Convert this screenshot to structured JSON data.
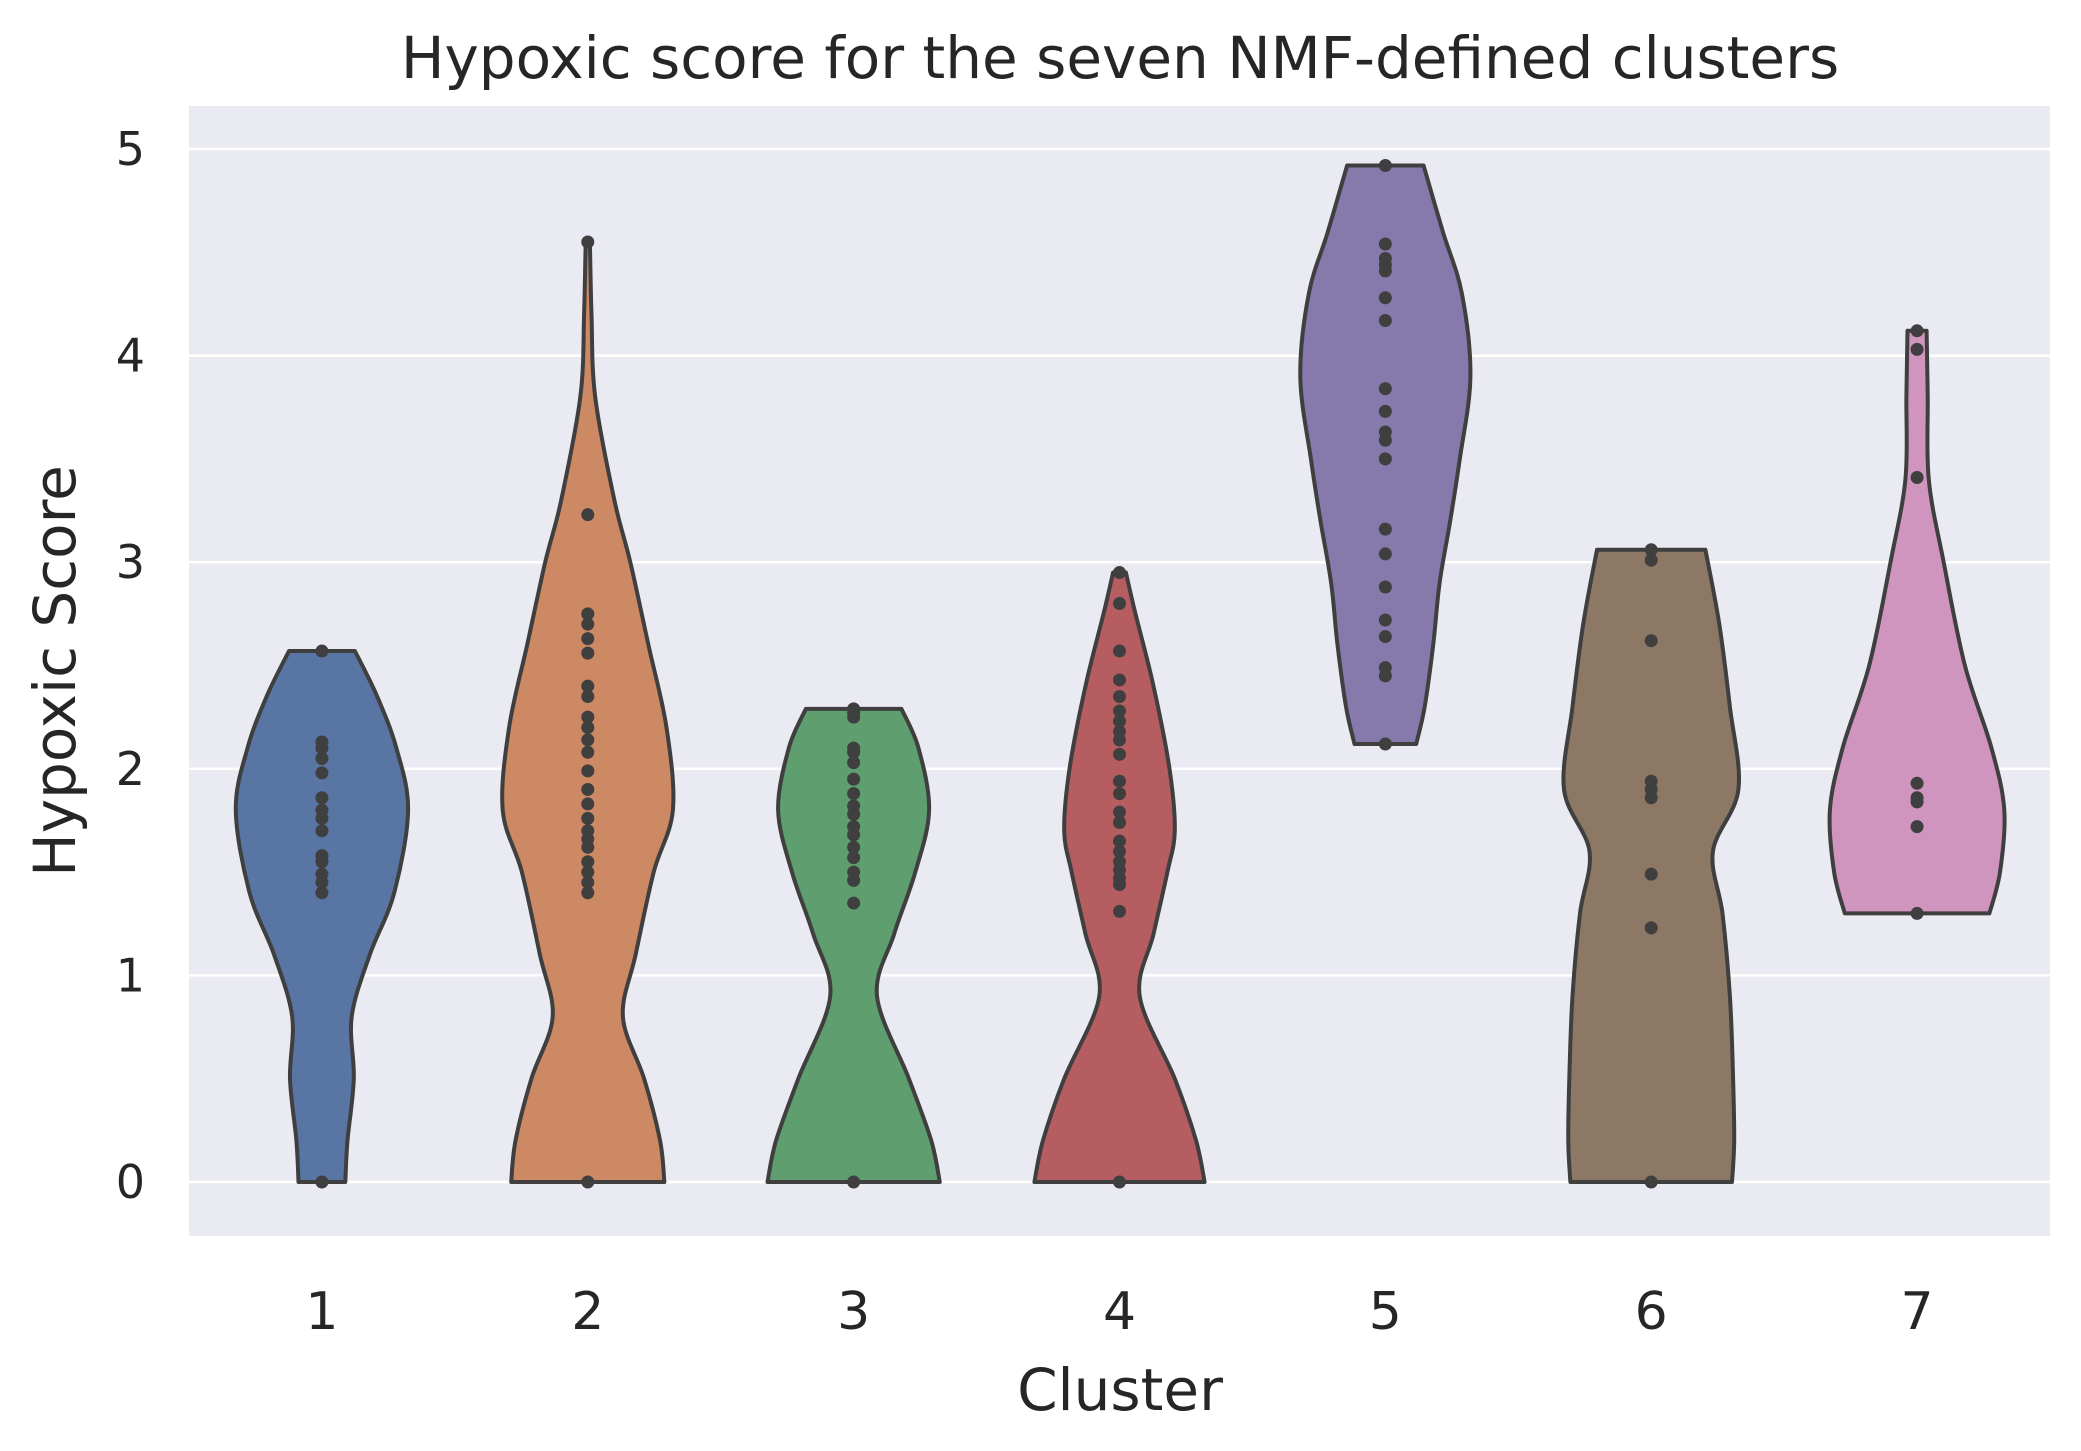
{
  "chart_data": {
    "type": "violin",
    "title": "Hypoxic score for the seven NMF-defined clusters",
    "xlabel": "Cluster",
    "ylabel": "Hypoxic Score",
    "ylim": [
      -0.28,
      5.2
    ],
    "yticks": [
      0,
      1,
      2,
      3,
      4,
      5
    ],
    "grid": true,
    "categories": [
      "1",
      "2",
      "3",
      "4",
      "5",
      "6",
      "7"
    ],
    "colors": [
      "#5875a4",
      "#cc8963",
      "#5f9e6e",
      "#b55d60",
      "#857aab",
      "#8d7866",
      "#d095bf"
    ],
    "background": "#eaeaf2",
    "edge_color": "#3f3f3f",
    "points": [
      [
        0,
        1.4,
        1.45,
        1.49,
        1.55,
        1.58,
        1.7,
        1.76,
        1.8,
        1.86,
        1.98,
        2.05,
        2.1,
        2.13,
        2.57
      ],
      [
        0,
        1.4,
        1.45,
        1.5,
        1.55,
        1.62,
        1.66,
        1.7,
        1.76,
        1.83,
        1.9,
        1.99,
        2.08,
        2.14,
        2.2,
        2.25,
        2.35,
        2.4,
        2.56,
        2.63,
        2.7,
        2.75,
        3.23,
        4.55
      ],
      [
        0,
        1.35,
        1.46,
        1.5,
        1.57,
        1.62,
        1.68,
        1.72,
        1.78,
        1.82,
        1.88,
        1.95,
        2.03,
        2.08,
        2.1,
        2.25,
        2.27,
        2.29
      ],
      [
        0,
        1.31,
        1.44,
        1.47,
        1.51,
        1.55,
        1.6,
        1.65,
        1.74,
        1.79,
        1.88,
        1.94,
        2.07,
        2.14,
        2.18,
        2.23,
        2.28,
        2.35,
        2.43,
        2.57,
        2.8,
        2.95
      ],
      [
        2.12,
        2.45,
        2.49,
        2.64,
        2.72,
        2.88,
        3.04,
        3.16,
        3.5,
        3.59,
        3.63,
        3.73,
        3.84,
        4.17,
        4.28,
        4.41,
        4.44,
        4.47,
        4.54,
        4.92
      ],
      [
        0,
        1.23,
        1.49,
        1.86,
        1.9,
        1.94,
        2.62,
        3.01,
        3.06
      ],
      [
        1.3,
        1.72,
        1.84,
        1.86,
        1.93,
        3.41,
        4.03,
        4.12
      ]
    ],
    "violin_shapes": [
      {
        "ymin": 0,
        "ymax": 2.57,
        "profile": [
          [
            0,
            0.22
          ],
          [
            0.2,
            0.24
          ],
          [
            0.5,
            0.3
          ],
          [
            0.8,
            0.28
          ],
          [
            1.1,
            0.45
          ],
          [
            1.4,
            0.68
          ],
          [
            1.8,
            0.81
          ],
          [
            2.1,
            0.7
          ],
          [
            2.35,
            0.52
          ],
          [
            2.57,
            0.31
          ]
        ]
      },
      {
        "ymin": 0,
        "ymax": 4.55,
        "profile": [
          [
            0,
            0.72
          ],
          [
            0.2,
            0.68
          ],
          [
            0.5,
            0.53
          ],
          [
            0.8,
            0.33
          ],
          [
            1.1,
            0.45
          ],
          [
            1.5,
            0.62
          ],
          [
            1.8,
            0.8
          ],
          [
            2.2,
            0.74
          ],
          [
            2.6,
            0.57
          ],
          [
            3.0,
            0.4
          ],
          [
            3.3,
            0.25
          ],
          [
            3.8,
            0.07
          ],
          [
            4.2,
            0.035
          ],
          [
            4.55,
            0.02
          ]
        ]
      },
      {
        "ymin": 0,
        "ymax": 2.29,
        "profile": [
          [
            0,
            0.81
          ],
          [
            0.2,
            0.73
          ],
          [
            0.5,
            0.52
          ],
          [
            0.9,
            0.22
          ],
          [
            1.2,
            0.38
          ],
          [
            1.5,
            0.58
          ],
          [
            1.8,
            0.71
          ],
          [
            2.1,
            0.61
          ],
          [
            2.29,
            0.45
          ]
        ]
      },
      {
        "ymin": 0,
        "ymax": 2.95,
        "profile": [
          [
            0,
            0.8
          ],
          [
            0.2,
            0.72
          ],
          [
            0.5,
            0.52
          ],
          [
            0.9,
            0.19
          ],
          [
            1.2,
            0.32
          ],
          [
            1.5,
            0.45
          ],
          [
            1.7,
            0.52
          ],
          [
            2.0,
            0.47
          ],
          [
            2.4,
            0.32
          ],
          [
            2.75,
            0.15
          ],
          [
            2.95,
            0.06
          ]
        ]
      },
      {
        "ymin": 2.12,
        "ymax": 4.92,
        "profile": [
          [
            2.12,
            0.29
          ],
          [
            2.3,
            0.37
          ],
          [
            2.6,
            0.45
          ],
          [
            2.9,
            0.51
          ],
          [
            3.2,
            0.61
          ],
          [
            3.5,
            0.7
          ],
          [
            3.9,
            0.8
          ],
          [
            4.3,
            0.72
          ],
          [
            4.6,
            0.54
          ],
          [
            4.92,
            0.36
          ]
        ]
      },
      {
        "ymin": 0,
        "ymax": 3.06,
        "profile": [
          [
            0,
            0.76
          ],
          [
            0.2,
            0.78
          ],
          [
            0.5,
            0.77
          ],
          [
            0.9,
            0.74
          ],
          [
            1.3,
            0.67
          ],
          [
            1.6,
            0.58
          ],
          [
            1.9,
            0.82
          ],
          [
            2.3,
            0.74
          ],
          [
            2.7,
            0.64
          ],
          [
            3.06,
            0.51
          ]
        ]
      },
      {
        "ymin": 1.3,
        "ymax": 4.12,
        "profile": [
          [
            1.3,
            0.68
          ],
          [
            1.5,
            0.78
          ],
          [
            1.8,
            0.82
          ],
          [
            2.1,
            0.7
          ],
          [
            2.5,
            0.45
          ],
          [
            3.0,
            0.25
          ],
          [
            3.4,
            0.11
          ],
          [
            3.8,
            0.1
          ],
          [
            4.12,
            0.09
          ]
        ]
      }
    ]
  }
}
